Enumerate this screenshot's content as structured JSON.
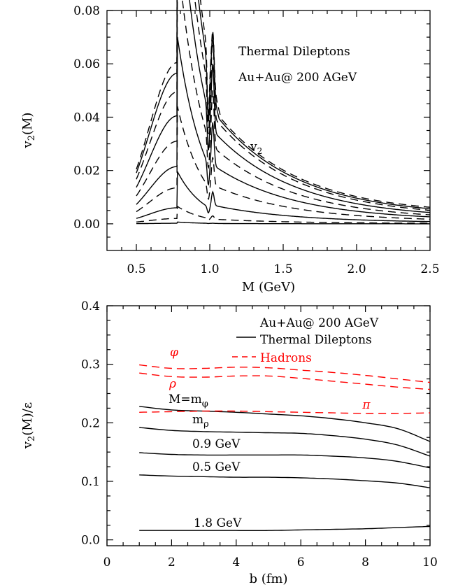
{
  "chart_data": [
    {
      "type": "line",
      "ylabel": "v₂(M)",
      "xlabel": "M (GeV)",
      "annotations": {
        "line1": "Thermal Dileptons",
        "line2": "Au+Au@ 200 AGeV",
        "curve_label": "v₂"
      },
      "xlim": [
        0.3,
        2.5
      ],
      "ylim": [
        -0.01,
        0.08
      ],
      "x_ticks": [
        "0.5",
        "1.0",
        "1.5",
        "2.0",
        "2.5"
      ],
      "y_ticks": [
        "0.00",
        "0.02",
        "0.04",
        "0.06",
        "0.08"
      ],
      "grid": false,
      "series": [
        {
          "style": "dashed",
          "peak": 0.0605,
          "phi": 0.0725,
          "tail": 0.0035
        },
        {
          "style": "solid",
          "peak": 0.0565,
          "phi": 0.0715,
          "tail": 0.003
        },
        {
          "style": "dashed",
          "peak": 0.0495,
          "phi": 0.069,
          "tail": 0.0025
        },
        {
          "style": "solid",
          "peak": 0.0405,
          "phi": 0.06,
          "tail": 0.002
        },
        {
          "style": "dashed",
          "peak": 0.031,
          "phi": 0.05,
          "tail": 0.0015
        },
        {
          "style": "solid",
          "peak": 0.0215,
          "phi": 0.038,
          "tail": 0.0012
        },
        {
          "style": "dashed",
          "peak": 0.0135,
          "phi": 0.025,
          "tail": 0.0008
        },
        {
          "style": "solid",
          "peak": 0.006,
          "phi": 0.012,
          "tail": 0.0004
        },
        {
          "style": "dashed",
          "peak": 0.002,
          "phi": 0.003,
          "tail": 0.0001
        },
        {
          "style": "solid",
          "peak": 0.0002,
          "phi": 0.0002,
          "tail": 0.0
        }
      ]
    },
    {
      "type": "line",
      "ylabel": "v₂(M)/ε",
      "xlabel": "b (fm)",
      "xlim": [
        0,
        10
      ],
      "ylim": [
        -0.01,
        0.4
      ],
      "x_ticks": [
        "0",
        "2",
        "4",
        "6",
        "8",
        "10"
      ],
      "y_ticks": [
        "0.0",
        "0.1",
        "0.2",
        "0.3",
        "0.4"
      ],
      "grid": false,
      "legend": {
        "title": "Au+Au@ 200 AGeV",
        "solid": "Thermal Dileptons",
        "dashed": "Hadrons",
        "position": "top-right"
      },
      "colors": {
        "dileptons": "#000000",
        "hadrons": "#ff0000"
      },
      "series": [
        {
          "name": "M=m",
          "sub": "φ",
          "group": "dileptons",
          "x": [
            1,
            2,
            3,
            4,
            5,
            6,
            7,
            8,
            9,
            10
          ],
          "y": [
            0.228,
            0.222,
            0.22,
            0.218,
            0.215,
            0.212,
            0.207,
            0.2,
            0.19,
            0.168
          ]
        },
        {
          "name": "m",
          "sub": "ρ",
          "group": "dileptons",
          "x": [
            1,
            2,
            3,
            4,
            5,
            6,
            7,
            8,
            9,
            10
          ],
          "y": [
            0.192,
            0.187,
            0.185,
            0.184,
            0.183,
            0.182,
            0.178,
            0.172,
            0.162,
            0.143
          ]
        },
        {
          "name": "0.9 GeV",
          "group": "dileptons",
          "x": [
            1,
            2,
            3,
            4,
            5,
            6,
            7,
            8,
            9,
            10
          ],
          "y": [
            0.149,
            0.146,
            0.145,
            0.145,
            0.145,
            0.145,
            0.143,
            0.14,
            0.134,
            0.123
          ]
        },
        {
          "name": "0.5 GeV",
          "group": "dileptons",
          "x": [
            1,
            2,
            3,
            4,
            5,
            6,
            7,
            8,
            9,
            10
          ],
          "y": [
            0.111,
            0.109,
            0.108,
            0.107,
            0.107,
            0.106,
            0.104,
            0.101,
            0.097,
            0.089
          ]
        },
        {
          "name": "1.8 GeV",
          "group": "dileptons",
          "x": [
            1,
            2,
            3,
            4,
            5,
            6,
            7,
            8,
            9,
            10
          ],
          "y": [
            0.016,
            0.016,
            0.016,
            0.016,
            0.016,
            0.017,
            0.018,
            0.019,
            0.021,
            0.023
          ]
        },
        {
          "name": "φ",
          "group": "hadrons",
          "x": [
            1,
            2,
            3,
            4,
            5,
            6,
            7,
            8,
            9,
            10
          ],
          "y": [
            0.299,
            0.293,
            0.293,
            0.295,
            0.294,
            0.29,
            0.286,
            0.281,
            0.275,
            0.269
          ]
        },
        {
          "name": "ρ",
          "group": "hadrons",
          "x": [
            1,
            2,
            3,
            4,
            5,
            6,
            7,
            8,
            9,
            10
          ],
          "y": [
            0.285,
            0.279,
            0.278,
            0.28,
            0.28,
            0.276,
            0.271,
            0.266,
            0.261,
            0.257
          ]
        },
        {
          "name": "π",
          "group": "hadrons",
          "x": [
            1,
            2,
            3,
            4,
            5,
            6,
            7,
            8,
            9,
            10
          ],
          "y": [
            0.218,
            0.219,
            0.22,
            0.22,
            0.219,
            0.218,
            0.217,
            0.216,
            0.216,
            0.217
          ]
        }
      ]
    }
  ]
}
